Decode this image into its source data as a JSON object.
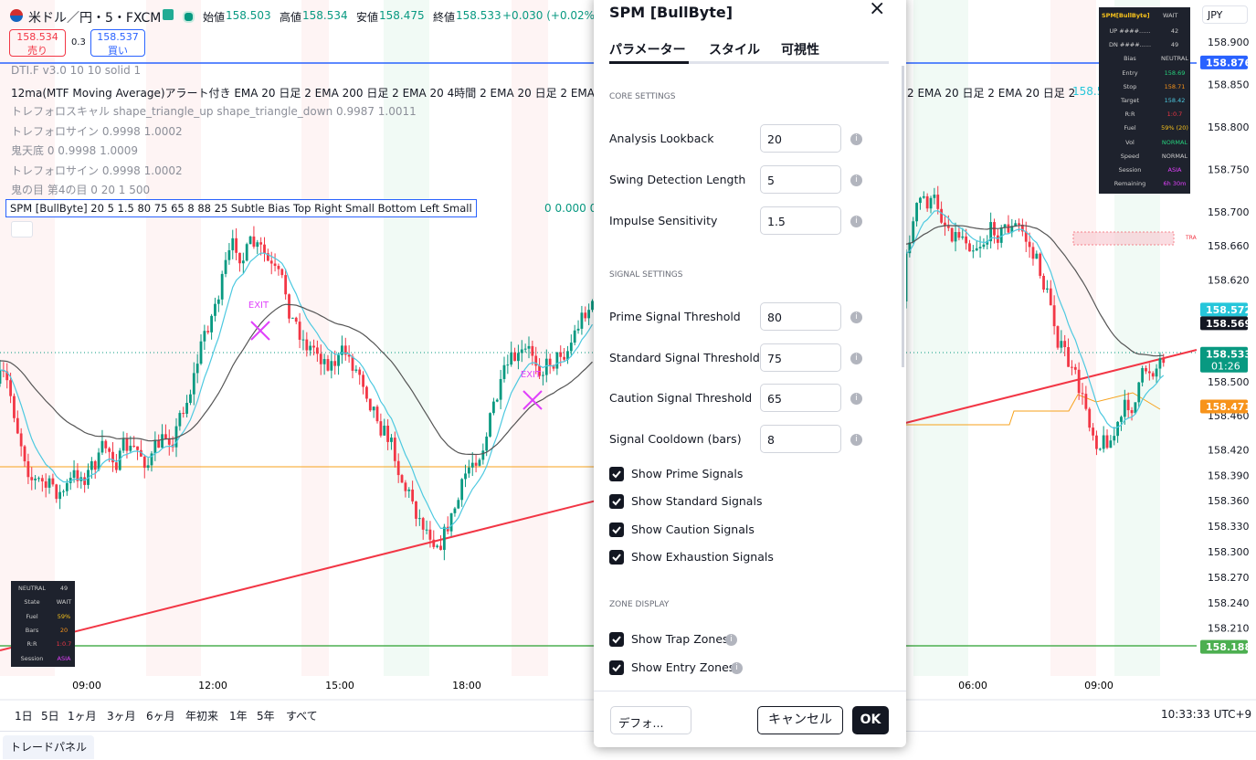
{
  "header": {
    "symbol": "米ドル／円・5・FXCM",
    "ohlc": [
      {
        "label": "始値",
        "value": "158.503"
      },
      {
        "label": "高値",
        "value": "158.534"
      },
      {
        "label": "安値",
        "value": "158.475"
      },
      {
        "label": "終値",
        "value": "158.533"
      }
    ],
    "change": "+0.030 (+0.02%)",
    "sell": {
      "price": "158.534",
      "label": "売り"
    },
    "spread": "0.3",
    "buy": {
      "price": "158.537",
      "label": "買い"
    }
  },
  "legend": [
    "DTI.F v3.0 10 10 solid 1",
    "12ma(MTF Moving Average)アラート付き EMA 20 日足 2 EMA 200 日足 2 EMA 20 4時間 2 EMA 20 日足 2 EMA 20 日足 2 EMA 20 日足 2",
    "トレフォロスキャル shape_triangle_up shape_triangle_down 0.9987 1.0011",
    "トレフォロサイン 0.9998 1.0002",
    "鬼天底 0 0.9998 1.0009",
    "トレフォロサイン 0.9998 1.0002",
    "鬼の目 第4の目 0 20 1 500",
    "SPM [BullByte] 20 5 1.5 80 75 65 8 88 25 Subtle Bias Top Right Small Bottom Left Small"
  ],
  "legend_tail": "2 EMA 20 日足 2 EMA 20 日足 2",
  "ema_values": [
    "158.572",
    "158.569"
  ],
  "spm_values": "0 0.000 0",
  "price_axis": {
    "currency": "JPY",
    "labels": [
      "158.900",
      "158.850",
      "158.800",
      "158.750",
      "158.700",
      "158.660",
      "158.620",
      "158.500",
      "158.460",
      "158.420",
      "158.390",
      "158.360",
      "158.330",
      "158.300",
      "158.270",
      "158.240",
      "158.210"
    ],
    "tags": [
      {
        "text": "158.876",
        "color": "#2962ff"
      },
      {
        "text": "158.572",
        "color": "#26c6da"
      },
      {
        "text": "158.569",
        "color": "#131722"
      },
      {
        "text": "158.533",
        "color": "#089981",
        "sub": "01:26"
      },
      {
        "text": "158.471",
        "color": "#f7931a"
      },
      {
        "text": "158.188",
        "color": "#4caf50"
      }
    ]
  },
  "time_axis": [
    "09:00",
    "12:00",
    "15:00",
    "18:00",
    "06:00",
    "09:00"
  ],
  "annotations": {
    "exit": [
      "EXIT",
      "EXIT"
    ],
    "trap": "TRAP"
  },
  "info_table": {
    "title": "SPM[BullByte]",
    "status": "WAIT",
    "rows": [
      [
        "UP ####......",
        "42"
      ],
      [
        "DN ####......",
        "49"
      ],
      [
        "Bias",
        "NEUTRAL"
      ],
      [
        "Entry",
        "158.69"
      ],
      [
        "Stop",
        "158.71"
      ],
      [
        "Target",
        "158.42"
      ],
      [
        "R:R",
        "1:0.7"
      ],
      [
        "Fuel",
        "59% (20)"
      ],
      [
        "Vol",
        "NORMAL"
      ],
      [
        "Speed",
        "NORMAL"
      ],
      [
        "Session",
        "ASIA"
      ],
      [
        "Remaining",
        "6h 30m"
      ]
    ]
  },
  "mini_table": {
    "rows": [
      [
        "NEUTRAL",
        "49"
      ],
      [
        "State",
        "WAIT"
      ],
      [
        "Fuel",
        "59%"
      ],
      [
        "Bars",
        "20"
      ],
      [
        "R:R",
        "1:0.7"
      ],
      [
        "Session",
        "ASIA"
      ]
    ]
  },
  "dialog": {
    "title": "SPM [BullByte]",
    "tabs": [
      "パラメーター",
      "スタイル",
      "可視性"
    ],
    "sections": [
      {
        "title": "CORE SETTINGS",
        "fields": [
          {
            "label": "Analysis Lookback",
            "value": "20"
          },
          {
            "label": "Swing Detection Length",
            "value": "5"
          },
          {
            "label": "Impulse Sensitivity",
            "value": "1.5"
          }
        ]
      },
      {
        "title": "SIGNAL SETTINGS",
        "fields": [
          {
            "label": "Prime Signal Threshold",
            "value": "80"
          },
          {
            "label": "Standard Signal Threshold",
            "value": "75"
          },
          {
            "label": "Caution Signal Threshold",
            "value": "65"
          },
          {
            "label": "Signal Cooldown (bars)",
            "value": "8"
          }
        ],
        "checks": [
          "Show Prime Signals",
          "Show Standard Signals",
          "Show Caution Signals",
          "Show Exhaustion Signals"
        ]
      },
      {
        "title": "ZONE DISPLAY",
        "checks": [
          "Show Trap Zones",
          "Show Entry Zones"
        ]
      }
    ],
    "defaults": "デフォ...",
    "cancel": "キャンセル",
    "ok": "OK"
  },
  "toolbar": {
    "ranges": [
      "1日",
      "5日",
      "1ヶ月",
      "3ヶ月",
      "6ヶ月",
      "年初来",
      "1年",
      "5年",
      "すべて"
    ],
    "clock": "10:33:33 UTC+9"
  },
  "panel": "トレードパネル"
}
